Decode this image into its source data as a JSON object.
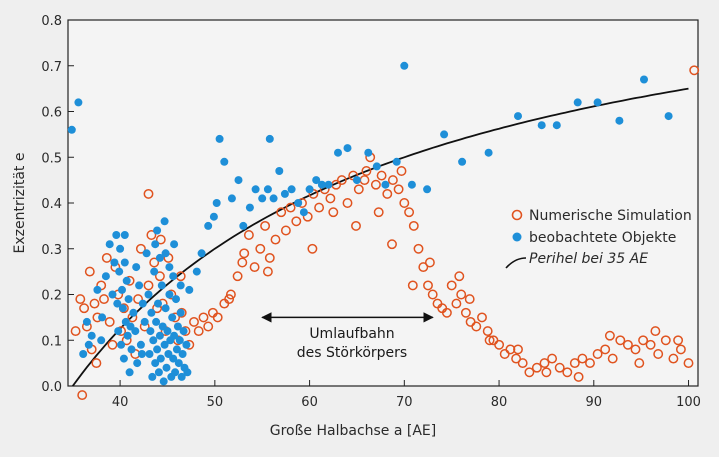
{
  "chart_data": {
    "type": "scatter",
    "xlabel": "Große Halbachse a [AE]",
    "ylabel": "Exzentrizität e",
    "xlim": [
      34.5,
      101
    ],
    "ylim": [
      0,
      0.8
    ],
    "x_ticks": [
      40,
      50,
      60,
      70,
      80,
      90,
      100
    ],
    "y_ticks": [
      0.0,
      0.1,
      0.2,
      0.3,
      0.4,
      0.5,
      0.6,
      0.7,
      0.8
    ],
    "x_tick_labels": [
      "40",
      "50",
      "60",
      "70",
      "80",
      "90",
      "100"
    ],
    "y_tick_labels": [
      "0.0",
      "0.1",
      "0.2",
      "0.3",
      "0.4",
      "0.5",
      "0.6",
      "0.7",
      "0.8"
    ],
    "grid": false,
    "legend_position": "right",
    "legend": [
      {
        "label": "Numerische Simulation",
        "marker": "open-circle",
        "color": "#e0531f"
      },
      {
        "label": "beobachtete Objekte",
        "marker": "filled-circle",
        "color": "#1e8fd8"
      },
      {
        "label": "Perihel bei 35 AE",
        "marker": "line",
        "color": "#111111"
      }
    ],
    "annotation": {
      "lines": [
        "Umlaufbahn",
        "des Störkörpers"
      ],
      "arrow_from_x": 55,
      "arrow_to_x": 73,
      "arrow_y": 0.15
    },
    "series": [
      {
        "name": "Numerische Simulation",
        "marker": "open-circle",
        "color": "#e0531f",
        "points": [
          [
            35.3,
            0.12
          ],
          [
            35.8,
            0.19
          ],
          [
            36.2,
            0.17
          ],
          [
            36.5,
            0.13
          ],
          [
            36.8,
            0.25
          ],
          [
            37.0,
            0.08
          ],
          [
            37.3,
            0.18
          ],
          [
            37.6,
            0.15
          ],
          [
            38.0,
            0.22
          ],
          [
            38.3,
            0.19
          ],
          [
            38.6,
            0.28
          ],
          [
            38.9,
            0.14
          ],
          [
            39.2,
            0.09
          ],
          [
            39.5,
            0.26
          ],
          [
            39.8,
            0.2
          ],
          [
            40.1,
            0.12
          ],
          [
            40.4,
            0.17
          ],
          [
            40.7,
            0.1
          ],
          [
            41.0,
            0.23
          ],
          [
            41.3,
            0.15
          ],
          [
            41.6,
            0.07
          ],
          [
            41.9,
            0.19
          ],
          [
            42.2,
            0.3
          ],
          [
            42.6,
            0.13
          ],
          [
            43.0,
            0.22
          ],
          [
            43.3,
            0.33
          ],
          [
            43.6,
            0.27
          ],
          [
            43.9,
            0.17
          ],
          [
            44.2,
            0.24
          ],
          [
            44.5,
            0.18
          ],
          [
            44.8,
            0.12
          ],
          [
            45.1,
            0.28
          ],
          [
            45.4,
            0.2
          ],
          [
            45.8,
            0.15
          ],
          [
            46.1,
            0.1
          ],
          [
            46.5,
            0.16
          ],
          [
            46.9,
            0.12
          ],
          [
            47.3,
            0.09
          ],
          [
            47.8,
            0.14
          ],
          [
            48.3,
            0.12
          ],
          [
            48.8,
            0.15
          ],
          [
            49.3,
            0.13
          ],
          [
            49.8,
            0.16
          ],
          [
            50.3,
            0.15
          ],
          [
            51.0,
            0.18
          ],
          [
            51.7,
            0.2
          ],
          [
            52.4,
            0.24
          ],
          [
            53.1,
            0.29
          ],
          [
            53.6,
            0.33
          ],
          [
            54.2,
            0.26
          ],
          [
            54.8,
            0.3
          ],
          [
            55.3,
            0.35
          ],
          [
            55.8,
            0.28
          ],
          [
            56.4,
            0.32
          ],
          [
            57.0,
            0.38
          ],
          [
            57.5,
            0.34
          ],
          [
            58.0,
            0.39
          ],
          [
            58.6,
            0.36
          ],
          [
            59.2,
            0.4
          ],
          [
            59.8,
            0.37
          ],
          [
            60.4,
            0.42
          ],
          [
            61.0,
            0.39
          ],
          [
            61.6,
            0.43
          ],
          [
            62.2,
            0.41
          ],
          [
            62.8,
            0.44
          ],
          [
            63.4,
            0.45
          ],
          [
            64.0,
            0.4
          ],
          [
            64.6,
            0.46
          ],
          [
            65.2,
            0.43
          ],
          [
            65.8,
            0.45
          ],
          [
            66.4,
            0.5
          ],
          [
            67.0,
            0.44
          ],
          [
            67.6,
            0.46
          ],
          [
            68.2,
            0.42
          ],
          [
            68.8,
            0.45
          ],
          [
            69.4,
            0.43
          ],
          [
            70.0,
            0.4
          ],
          [
            70.5,
            0.38
          ],
          [
            71.0,
            0.35
          ],
          [
            71.5,
            0.3
          ],
          [
            72.0,
            0.26
          ],
          [
            72.5,
            0.22
          ],
          [
            73.0,
            0.2
          ],
          [
            73.5,
            0.18
          ],
          [
            74.0,
            0.17
          ],
          [
            74.5,
            0.16
          ],
          [
            75.0,
            0.22
          ],
          [
            75.5,
            0.18
          ],
          [
            76.0,
            0.2
          ],
          [
            76.5,
            0.16
          ],
          [
            77.0,
            0.14
          ],
          [
            77.6,
            0.13
          ],
          [
            78.2,
            0.15
          ],
          [
            78.8,
            0.12
          ],
          [
            79.4,
            0.1
          ],
          [
            80.0,
            0.09
          ],
          [
            80.6,
            0.07
          ],
          [
            81.2,
            0.08
          ],
          [
            81.8,
            0.06
          ],
          [
            82.5,
            0.05
          ],
          [
            83.2,
            0.03
          ],
          [
            84.0,
            0.04
          ],
          [
            84.8,
            0.05
          ],
          [
            85.6,
            0.06
          ],
          [
            86.4,
            0.04
          ],
          [
            87.2,
            0.03
          ],
          [
            88.0,
            0.05
          ],
          [
            88.8,
            0.06
          ],
          [
            89.6,
            0.05
          ],
          [
            90.4,
            0.07
          ],
          [
            91.2,
            0.08
          ],
          [
            92.0,
            0.06
          ],
          [
            92.8,
            0.1
          ],
          [
            93.6,
            0.09
          ],
          [
            94.4,
            0.08
          ],
          [
            95.2,
            0.1
          ],
          [
            96.0,
            0.09
          ],
          [
            96.8,
            0.07
          ],
          [
            97.6,
            0.1
          ],
          [
            98.4,
            0.06
          ],
          [
            99.2,
            0.08
          ],
          [
            100.0,
            0.05
          ],
          [
            100.6,
            0.69
          ],
          [
            36.0,
            -0.02
          ],
          [
            37.5,
            0.05
          ],
          [
            43.0,
            0.42
          ],
          [
            44.3,
            0.32
          ],
          [
            46.4,
            0.24
          ],
          [
            51.5,
            0.19
          ],
          [
            52.9,
            0.27
          ],
          [
            55.6,
            0.25
          ],
          [
            60.3,
            0.3
          ],
          [
            62.5,
            0.38
          ],
          [
            64.9,
            0.35
          ],
          [
            66.0,
            0.47
          ],
          [
            67.3,
            0.38
          ],
          [
            68.7,
            0.31
          ],
          [
            69.7,
            0.47
          ],
          [
            70.9,
            0.22
          ],
          [
            72.7,
            0.27
          ],
          [
            75.8,
            0.24
          ],
          [
            76.9,
            0.19
          ],
          [
            79.0,
            0.1
          ],
          [
            82.0,
            0.08
          ],
          [
            85.0,
            0.03
          ],
          [
            88.4,
            0.02
          ],
          [
            91.7,
            0.11
          ],
          [
            94.8,
            0.05
          ],
          [
            96.5,
            0.12
          ],
          [
            98.9,
            0.1
          ]
        ]
      },
      {
        "name": "beobachtete Objekte",
        "marker": "filled-circle",
        "color": "#1e8fd8",
        "points": [
          [
            34.9,
            0.56
          ],
          [
            35.6,
            0.62
          ],
          [
            36.1,
            0.07
          ],
          [
            36.5,
            0.14
          ],
          [
            37.0,
            0.11
          ],
          [
            37.6,
            0.21
          ],
          [
            38.1,
            0.15
          ],
          [
            38.5,
            0.24
          ],
          [
            38.9,
            0.31
          ],
          [
            39.2,
            0.2
          ],
          [
            39.4,
            0.27
          ],
          [
            39.6,
            0.33
          ],
          [
            39.7,
            0.18
          ],
          [
            39.8,
            0.12
          ],
          [
            39.9,
            0.25
          ],
          [
            40.0,
            0.3
          ],
          [
            40.1,
            0.09
          ],
          [
            40.2,
            0.21
          ],
          [
            40.3,
            0.17
          ],
          [
            40.4,
            0.06
          ],
          [
            40.5,
            0.27
          ],
          [
            40.6,
            0.14
          ],
          [
            40.7,
            0.23
          ],
          [
            40.8,
            0.11
          ],
          [
            40.9,
            0.19
          ],
          [
            41.0,
            0.03
          ],
          [
            41.2,
            0.08
          ],
          [
            41.4,
            0.16
          ],
          [
            41.6,
            0.12
          ],
          [
            41.8,
            0.05
          ],
          [
            42.0,
            0.22
          ],
          [
            42.2,
            0.09
          ],
          [
            42.4,
            0.18
          ],
          [
            42.6,
            0.14
          ],
          [
            42.8,
            0.29
          ],
          [
            43.0,
            0.2
          ],
          [
            43.1,
            0.07
          ],
          [
            43.2,
            0.12
          ],
          [
            43.3,
            0.16
          ],
          [
            43.4,
            0.02
          ],
          [
            43.5,
            0.1
          ],
          [
            43.6,
            0.25
          ],
          [
            43.7,
            0.05
          ],
          [
            43.8,
            0.14
          ],
          [
            43.9,
            0.08
          ],
          [
            44.0,
            0.18
          ],
          [
            44.1,
            0.03
          ],
          [
            44.2,
            0.11
          ],
          [
            44.3,
            0.06
          ],
          [
            44.4,
            0.22
          ],
          [
            44.5,
            0.13
          ],
          [
            44.6,
            0.01
          ],
          [
            44.7,
            0.09
          ],
          [
            44.8,
            0.17
          ],
          [
            44.9,
            0.04
          ],
          [
            45.0,
            0.12
          ],
          [
            45.1,
            0.07
          ],
          [
            45.2,
            0.2
          ],
          [
            45.3,
            0.1
          ],
          [
            45.4,
            0.02
          ],
          [
            45.5,
            0.15
          ],
          [
            45.6,
            0.06
          ],
          [
            45.7,
            0.11
          ],
          [
            45.8,
            0.03
          ],
          [
            45.9,
            0.19
          ],
          [
            46.0,
            0.08
          ],
          [
            46.1,
            0.13
          ],
          [
            46.2,
            0.05
          ],
          [
            46.3,
            0.1
          ],
          [
            46.4,
            0.16
          ],
          [
            46.5,
            0.02
          ],
          [
            46.6,
            0.07
          ],
          [
            46.7,
            0.12
          ],
          [
            46.8,
            0.04
          ],
          [
            47.0,
            0.09
          ],
          [
            43.7,
            0.31
          ],
          [
            43.9,
            0.34
          ],
          [
            44.2,
            0.28
          ],
          [
            44.7,
            0.36
          ],
          [
            45.2,
            0.26
          ],
          [
            45.7,
            0.31
          ],
          [
            46.4,
            0.22
          ],
          [
            47.3,
            0.21
          ],
          [
            48.1,
            0.25
          ],
          [
            48.6,
            0.29
          ],
          [
            49.3,
            0.35
          ],
          [
            49.9,
            0.37
          ],
          [
            50.5,
            0.54
          ],
          [
            51.0,
            0.49
          ],
          [
            51.8,
            0.41
          ],
          [
            52.5,
            0.45
          ],
          [
            53.0,
            0.35
          ],
          [
            53.7,
            0.39
          ],
          [
            54.3,
            0.43
          ],
          [
            55.0,
            0.41
          ],
          [
            55.6,
            0.43
          ],
          [
            56.2,
            0.41
          ],
          [
            56.8,
            0.47
          ],
          [
            57.4,
            0.42
          ],
          [
            58.1,
            0.43
          ],
          [
            58.8,
            0.4
          ],
          [
            59.4,
            0.38
          ],
          [
            60.0,
            0.43
          ],
          [
            60.7,
            0.45
          ],
          [
            61.3,
            0.44
          ],
          [
            62.0,
            0.44
          ],
          [
            63.0,
            0.51
          ],
          [
            64.0,
            0.52
          ],
          [
            65.0,
            0.45
          ],
          [
            66.2,
            0.51
          ],
          [
            67.1,
            0.48
          ],
          [
            68.0,
            0.44
          ],
          [
            69.2,
            0.49
          ],
          [
            70.0,
            0.7
          ],
          [
            70.8,
            0.44
          ],
          [
            72.4,
            0.43
          ],
          [
            74.2,
            0.55
          ],
          [
            76.1,
            0.49
          ],
          [
            78.9,
            0.51
          ],
          [
            82.0,
            0.59
          ],
          [
            84.5,
            0.57
          ],
          [
            86.1,
            0.57
          ],
          [
            88.3,
            0.62
          ],
          [
            90.4,
            0.62
          ],
          [
            92.7,
            0.58
          ],
          [
            95.3,
            0.67
          ],
          [
            97.9,
            0.59
          ],
          [
            50.2,
            0.4
          ],
          [
            55.8,
            0.54
          ],
          [
            40.5,
            0.33
          ],
          [
            41.7,
            0.26
          ],
          [
            38.0,
            0.1
          ],
          [
            36.7,
            0.09
          ],
          [
            47.1,
            0.03
          ],
          [
            45.6,
            0.24
          ],
          [
            44.8,
            0.29
          ],
          [
            42.3,
            0.07
          ],
          [
            41.1,
            0.13
          ]
        ]
      }
    ]
  }
}
